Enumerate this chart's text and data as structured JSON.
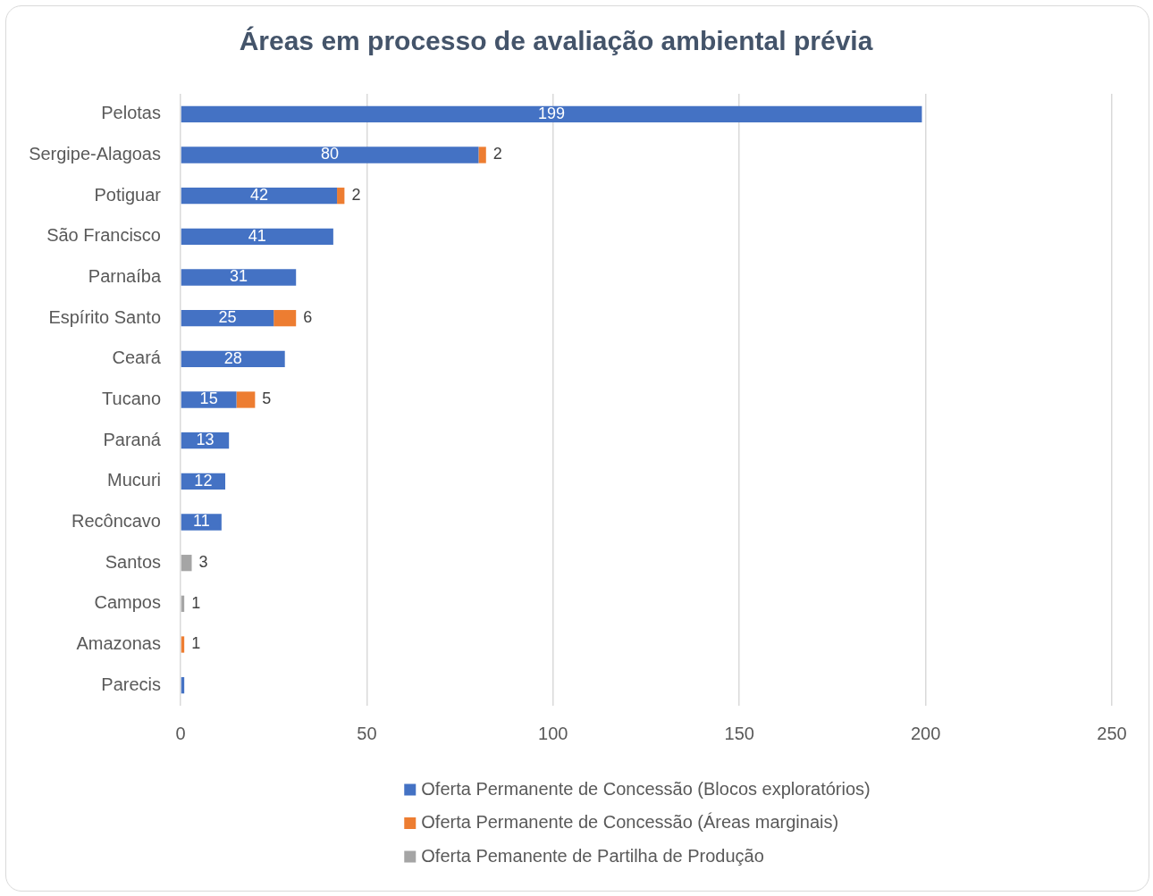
{
  "chart_data": {
    "type": "bar",
    "orientation": "horizontal",
    "stacked": true,
    "title": "Áreas em processo de avaliação ambiental prévia",
    "categories": [
      "Pelotas",
      "Sergipe-Alagoas",
      "Potiguar",
      "São Francisco",
      "Parnaíba",
      "Espírito Santo",
      "Ceará",
      "Tucano",
      "Paraná",
      "Mucuri",
      "Recôncavo",
      "Santos",
      "Campos",
      "Amazonas",
      "Parecis"
    ],
    "series": [
      {
        "name": "Oferta Permanente de Concessão (Blocos exploratórios)",
        "color": "#4472c4",
        "values": [
          199,
          80,
          42,
          41,
          31,
          25,
          28,
          15,
          13,
          12,
          11,
          null,
          null,
          null,
          1
        ],
        "value_labels": [
          "199",
          "80",
          "42",
          "41",
          "31",
          "25",
          "28",
          "15",
          "13",
          "12",
          "11",
          null,
          null,
          null,
          null
        ]
      },
      {
        "name": "Oferta Permanente de Concessão (Áreas marginais)",
        "color": "#ed7d31",
        "values": [
          null,
          2,
          2,
          null,
          null,
          6,
          null,
          5,
          null,
          null,
          null,
          null,
          null,
          1,
          null
        ],
        "value_labels": [
          null,
          "2",
          "2",
          null,
          null,
          "6",
          null,
          "5",
          null,
          null,
          null,
          null,
          null,
          "1",
          null
        ]
      },
      {
        "name": "Oferta Pemanente de Partilha de Produção",
        "color": "#a5a5a5",
        "values": [
          null,
          null,
          null,
          null,
          null,
          null,
          null,
          null,
          null,
          null,
          null,
          3,
          1,
          null,
          null
        ],
        "value_labels": [
          null,
          null,
          null,
          null,
          null,
          null,
          null,
          null,
          null,
          null,
          null,
          "3",
          "1",
          null,
          null
        ]
      }
    ],
    "xlim": [
      0,
      250
    ],
    "xticks": [
      0,
      50,
      100,
      150,
      200,
      250
    ],
    "grid": "x",
    "legend": "bottom"
  }
}
